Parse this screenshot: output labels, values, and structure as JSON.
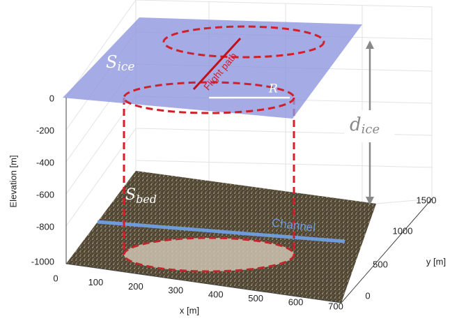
{
  "axes": {
    "z_label": "Elevation [m]",
    "z_ticks": [
      "0",
      "-200",
      "-400",
      "-600",
      "-800",
      "-1000"
    ],
    "x_label": "x [m]",
    "x_ticks": [
      "0",
      "100",
      "200",
      "300",
      "400",
      "500",
      "600",
      "700"
    ],
    "y_label": "y [m]",
    "y_ticks": [
      "0",
      "500",
      "1000",
      "1500"
    ]
  },
  "annotations": {
    "s_ice": "S",
    "s_ice_sub": "ice",
    "s_bed": "S",
    "s_bed_sub": "bed",
    "d_ice": "d",
    "d_ice_sub": "ice",
    "radius": "R",
    "flight_path": "Flight path",
    "channel": "Channel"
  }
}
